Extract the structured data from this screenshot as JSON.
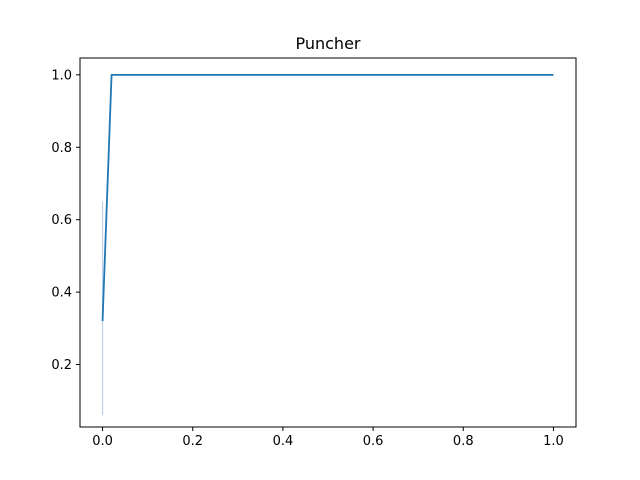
{
  "chart_data": {
    "type": "line",
    "title": "Puncher",
    "xlabel": "",
    "ylabel": "",
    "xlim": [
      -0.05,
      1.05
    ],
    "ylim": [
      0.0275,
      1.0465
    ],
    "grid": false,
    "xticks": [
      0.0,
      0.2,
      0.4,
      0.6,
      0.8,
      1.0
    ],
    "xtick_labels": [
      "0.0",
      "0.2",
      "0.4",
      "0.6",
      "0.8",
      "1.0"
    ],
    "yticks": [
      0.2,
      0.4,
      0.6,
      0.8,
      1.0
    ],
    "ytick_labels": [
      "0.2",
      "0.4",
      "0.6",
      "0.8",
      "1.0"
    ],
    "series": [
      {
        "color": "#1f77b4",
        "x": [
          0.0,
          0.02,
          1.0
        ],
        "y": [
          0.32,
          1.0,
          1.0
        ],
        "band": {
          "x": 0.0,
          "lower": 0.06,
          "upper": 0.65,
          "color": "#aec7e8"
        }
      }
    ]
  }
}
